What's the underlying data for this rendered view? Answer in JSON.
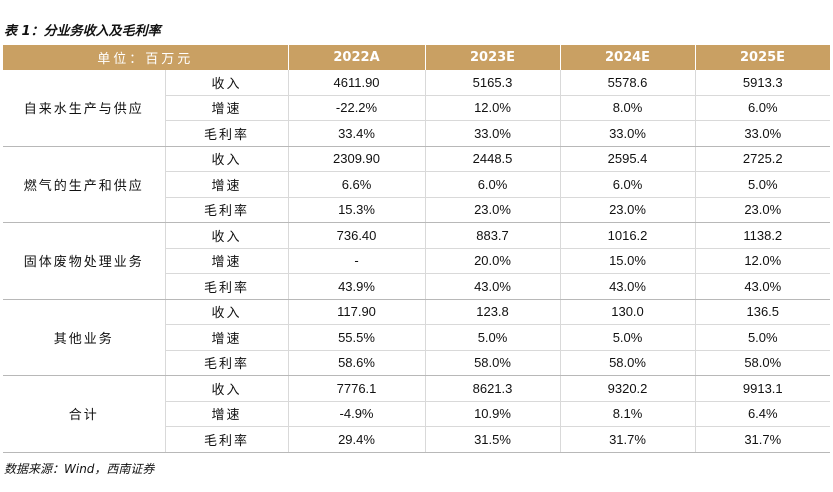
{
  "title": "表 1：分业务收入及毛利率",
  "table": {
    "header": [
      "单位：百万元",
      "2022A",
      "2023E",
      "2024E",
      "2025E"
    ],
    "groups": [
      {
        "name": "自来水生产与供应",
        "rows": [
          {
            "metric": "收入",
            "values": [
              "4611.90",
              "5165.3",
              "5578.6",
              "5913.3"
            ]
          },
          {
            "metric": "增速",
            "values": [
              "-22.2%",
              "12.0%",
              "8.0%",
              "6.0%"
            ]
          },
          {
            "metric": "毛利率",
            "values": [
              "33.4%",
              "33.0%",
              "33.0%",
              "33.0%"
            ]
          }
        ]
      },
      {
        "name": "燃气的生产和供应",
        "rows": [
          {
            "metric": "收入",
            "values": [
              "2309.90",
              "2448.5",
              "2595.4",
              "2725.2"
            ]
          },
          {
            "metric": "增速",
            "values": [
              "6.6%",
              "6.0%",
              "6.0%",
              "5.0%"
            ]
          },
          {
            "metric": "毛利率",
            "values": [
              "15.3%",
              "23.0%",
              "23.0%",
              "23.0%"
            ]
          }
        ]
      },
      {
        "name": "固体废物处理业务",
        "rows": [
          {
            "metric": "收入",
            "values": [
              "736.40",
              "883.7",
              "1016.2",
              "1138.2"
            ]
          },
          {
            "metric": "增速",
            "values": [
              "-",
              "20.0%",
              "15.0%",
              "12.0%"
            ]
          },
          {
            "metric": "毛利率",
            "values": [
              "43.9%",
              "43.0%",
              "43.0%",
              "43.0%"
            ]
          }
        ]
      },
      {
        "name": "其他业务",
        "rows": [
          {
            "metric": "收入",
            "values": [
              "117.90",
              "123.8",
              "130.0",
              "136.5"
            ]
          },
          {
            "metric": "增速",
            "values": [
              "55.5%",
              "5.0%",
              "5.0%",
              "5.0%"
            ]
          },
          {
            "metric": "毛利率",
            "values": [
              "58.6%",
              "58.0%",
              "58.0%",
              "58.0%"
            ]
          }
        ]
      },
      {
        "name": "合计",
        "rows": [
          {
            "metric": "收入",
            "values": [
              "7776.1",
              "8621.3",
              "9320.2",
              "9913.1"
            ]
          },
          {
            "metric": "增速",
            "values": [
              "-4.9%",
              "10.9%",
              "8.1%",
              "6.4%"
            ]
          },
          {
            "metric": "毛利率",
            "values": [
              "29.4%",
              "31.5%",
              "31.7%",
              "31.7%"
            ]
          }
        ]
      }
    ]
  },
  "source": "数据来源：Wind，西南证券"
}
